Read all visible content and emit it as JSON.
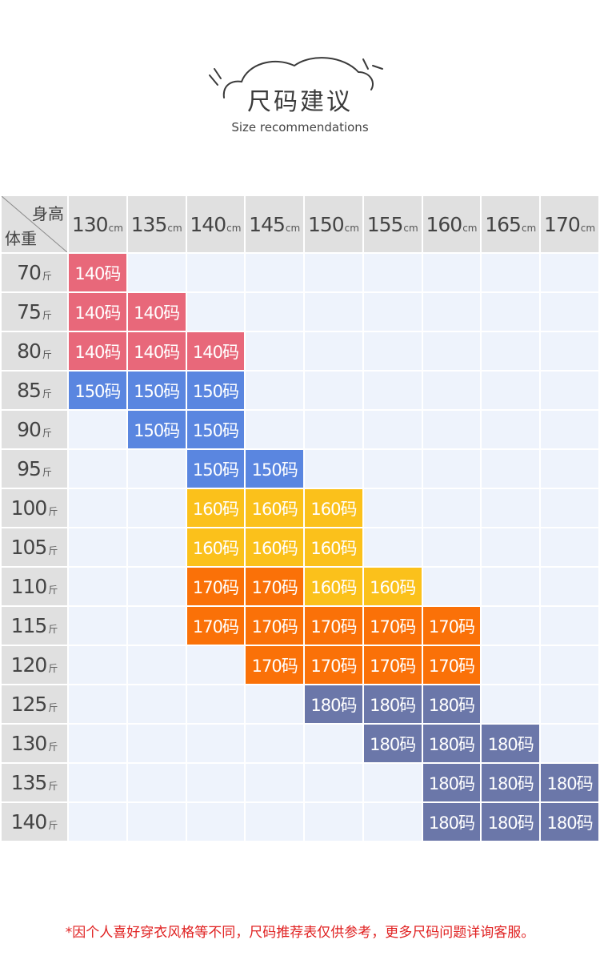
{
  "header": {
    "title": "尺码建议",
    "subtitle": "Size recommendations"
  },
  "table": {
    "corner_height_label": "身高",
    "corner_weight_label": "体重",
    "height_unit": "cm",
    "weight_unit": "斤",
    "heights": [
      "130",
      "135",
      "140",
      "145",
      "150",
      "155",
      "160",
      "165",
      "170"
    ],
    "rows": [
      {
        "weight": "70",
        "cells": [
          "140码",
          "",
          "",
          "",
          "",
          "",
          "",
          "",
          ""
        ]
      },
      {
        "weight": "75",
        "cells": [
          "140码",
          "140码",
          "",
          "",
          "",
          "",
          "",
          "",
          ""
        ]
      },
      {
        "weight": "80",
        "cells": [
          "140码",
          "140码",
          "140码",
          "",
          "",
          "",
          "",
          "",
          ""
        ]
      },
      {
        "weight": "85",
        "cells": [
          "150码",
          "150码",
          "150码",
          "",
          "",
          "",
          "",
          "",
          ""
        ]
      },
      {
        "weight": "90",
        "cells": [
          "",
          "150码",
          "150码",
          "",
          "",
          "",
          "",
          "",
          ""
        ]
      },
      {
        "weight": "95",
        "cells": [
          "",
          "",
          "150码",
          "150码",
          "",
          "",
          "",
          "",
          ""
        ]
      },
      {
        "weight": "100",
        "cells": [
          "",
          "",
          "160码",
          "160码",
          "160码",
          "",
          "",
          "",
          ""
        ]
      },
      {
        "weight": "105",
        "cells": [
          "",
          "",
          "160码",
          "160码",
          "160码",
          "",
          "",
          "",
          ""
        ]
      },
      {
        "weight": "110",
        "cells": [
          "",
          "",
          "170码",
          "170码",
          "160码",
          "160码",
          "",
          "",
          ""
        ]
      },
      {
        "weight": "115",
        "cells": [
          "",
          "",
          "170码",
          "170码",
          "170码",
          "170码",
          "170码",
          "",
          ""
        ]
      },
      {
        "weight": "120",
        "cells": [
          "",
          "",
          "",
          "170码",
          "170码",
          "170码",
          "170码",
          "",
          ""
        ]
      },
      {
        "weight": "125",
        "cells": [
          "",
          "",
          "",
          "",
          "180码",
          "180码",
          "180码",
          "",
          ""
        ]
      },
      {
        "weight": "130",
        "cells": [
          "",
          "",
          "",
          "",
          "",
          "180码",
          "180码",
          "180码",
          ""
        ]
      },
      {
        "weight": "135",
        "cells": [
          "",
          "",
          "",
          "",
          "",
          "",
          "180码",
          "180码",
          "180码"
        ]
      },
      {
        "weight": "140",
        "cells": [
          "",
          "",
          "",
          "",
          "",
          "",
          "180码",
          "180码",
          "180码"
        ]
      }
    ],
    "colors": {
      "140码": "#e8687a",
      "150码": "#5a86e0",
      "160码": "#fbc11b",
      "170码": "#fa7108",
      "180码": "#6b77a9",
      "empty": "#eef3fc",
      "header": "#e0e0e0"
    }
  },
  "footnote": "*因个人喜好穿衣风格等不同，尺码推荐表仅供参考，更多尺码问题详询客服。"
}
